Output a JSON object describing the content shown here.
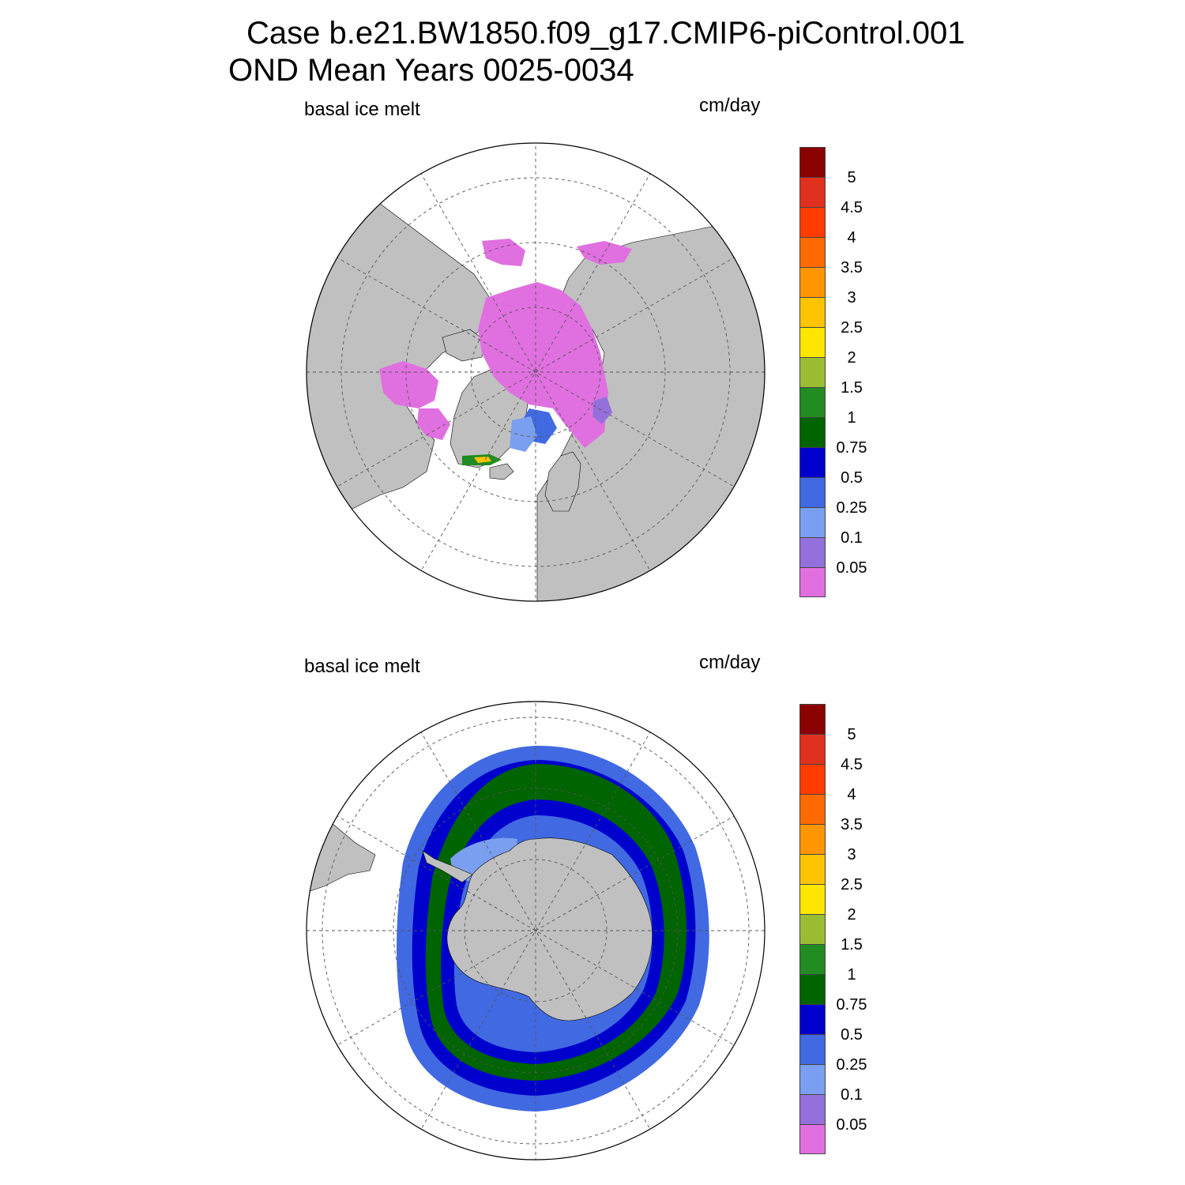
{
  "title": {
    "line1": "Case b.e21.BW1850.f09_g17.CMIP6-piControl.001",
    "line2": "OND Mean   Years 0025-0034"
  },
  "panels": [
    {
      "id": "north",
      "left_label": "basal ice melt",
      "right_label": "cm/day"
    },
    {
      "id": "south",
      "left_label": "basal ice melt",
      "right_label": "cm/day"
    }
  ],
  "colorbar": {
    "labels": [
      "5",
      "4.5",
      "4",
      "3.5",
      "3",
      "2.5",
      "2",
      "1.5",
      "1",
      "0.75",
      "0.5",
      "0.25",
      "0.1",
      "0.05"
    ],
    "colors": [
      "#8b0000",
      "#e0301e",
      "#ff3b00",
      "#ff6a00",
      "#ff9600",
      "#ffc400",
      "#ffe600",
      "#9bbd33",
      "#228b22",
      "#006400",
      "#0000cd",
      "#4169e1",
      "#7b9ff0",
      "#9370db",
      "#e070e0"
    ]
  },
  "map_colors": {
    "land": "#c0c0c0",
    "ocean": "#ffffff",
    "grid": "#555555"
  }
}
